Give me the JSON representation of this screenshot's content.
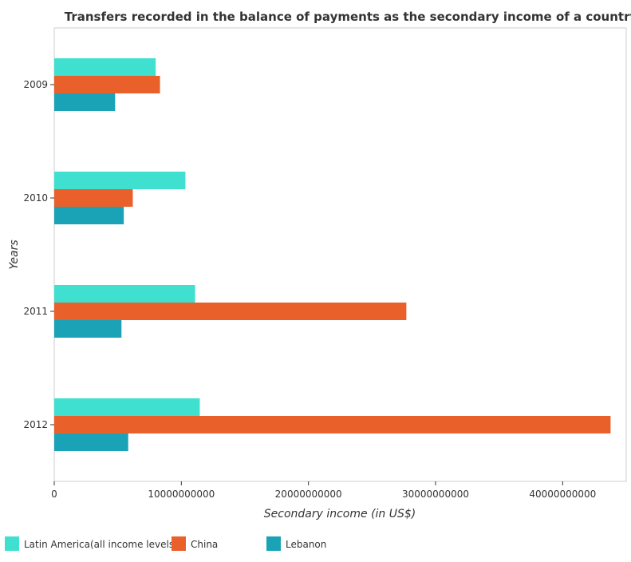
{
  "chart_data": {
    "type": "bar",
    "orientation": "horizontal",
    "title": "Transfers recorded in the balance of payments as the secondary income of a country",
    "xlabel": "Secondary income (in US$)",
    "ylabel": "Years",
    "categories": [
      "2009",
      "2010",
      "2011",
      "2012"
    ],
    "series": [
      {
        "name": "Latin America(all income levels)",
        "color": "#40e0d0",
        "values": [
          7980000000,
          10320000000,
          11080000000,
          11450000000
        ]
      },
      {
        "name": "China",
        "color": "#e9602a",
        "values": [
          8320000000,
          6180000000,
          27700000000,
          43770000000
        ]
      },
      {
        "name": "Lebanon",
        "color": "#1aa3b7",
        "values": [
          4790000000,
          5470000000,
          5290000000,
          5820000000
        ]
      }
    ],
    "xlim": [
      0,
      45000000000
    ],
    "xticks": [
      0,
      10000000000,
      20000000000,
      30000000000,
      40000000000
    ],
    "xtick_labels": [
      "0",
      "10000000000",
      "20000000000",
      "30000000000",
      "40000000000"
    ],
    "grid": false,
    "legend_position": "bottom-left"
  }
}
